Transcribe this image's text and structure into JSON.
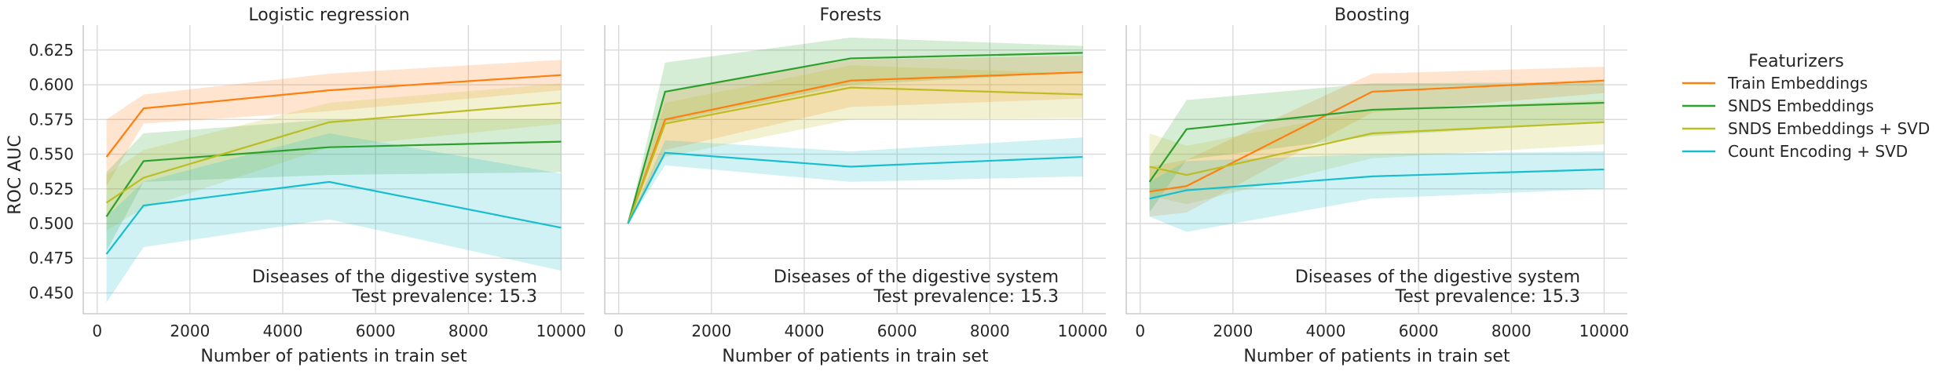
{
  "chart_data": {
    "type": "line",
    "ylabel": "ROC AUC",
    "xlabel": "Number of patients in train set",
    "x_ticks": [
      "0",
      "2000",
      "4000",
      "6000",
      "8000",
      "10000"
    ],
    "y_ticks": [
      "0.450",
      "0.475",
      "0.500",
      "0.525",
      "0.550",
      "0.575",
      "0.600",
      "0.625"
    ],
    "xlim": [
      -300,
      10500
    ],
    "ylim": [
      0.435,
      0.643
    ],
    "grid": true,
    "legend": {
      "title": "Featurizers",
      "placement": "right",
      "entries": [
        {
          "name": "Train Embeddings",
          "color": "#ff7f0e"
        },
        {
          "name": "SNDS Embeddings",
          "color": "#2ca02c"
        },
        {
          "name": "SNDS Embeddings + SVD",
          "color": "#bcbd22"
        },
        {
          "name": "Count Encoding + SVD",
          "color": "#17becf"
        }
      ]
    },
    "panels": [
      {
        "title": "Logistic regression",
        "annotation": [
          "Diseases of the digestive system",
          "Test prevalence: 15.3"
        ],
        "x": [
          200,
          1000,
          5000,
          10000
        ],
        "series": [
          {
            "name": "Train Embeddings",
            "values": [
              0.548,
              0.583,
              0.596,
              0.607
            ],
            "lower": [
              0.527,
              0.572,
              0.581,
              0.596
            ],
            "upper": [
              0.575,
              0.593,
              0.608,
              0.618
            ]
          },
          {
            "name": "SNDS Embeddings",
            "values": [
              0.505,
              0.545,
              0.555,
              0.559
            ],
            "lower": [
              0.48,
              0.53,
              0.535,
              0.537
            ],
            "upper": [
              0.537,
              0.565,
              0.575,
              0.575
            ]
          },
          {
            "name": "SNDS Embeddings + SVD",
            "values": [
              0.515,
              0.533,
              0.573,
              0.587
            ],
            "lower": [
              0.495,
              0.511,
              0.555,
              0.572
            ],
            "upper": [
              0.535,
              0.553,
              0.587,
              0.601
            ]
          },
          {
            "name": "Count Encoding + SVD",
            "values": [
              0.478,
              0.513,
              0.53,
              0.497
            ],
            "lower": [
              0.443,
              0.483,
              0.503,
              0.466
            ],
            "upper": [
              0.505,
              0.53,
              0.565,
              0.536
            ]
          }
        ]
      },
      {
        "title": "Forests",
        "annotation": [
          "Diseases of the digestive system",
          "Test prevalence: 15.3"
        ],
        "x": [
          200,
          1000,
          5000,
          10000
        ],
        "series": [
          {
            "name": "Train Embeddings",
            "values": [
              0.5,
              0.575,
              0.603,
              0.609
            ],
            "lower": [
              0.5,
              0.553,
              0.584,
              0.59
            ],
            "upper": [
              0.5,
              0.595,
              0.618,
              0.621
            ]
          },
          {
            "name": "SNDS Embeddings",
            "values": [
              0.5,
              0.595,
              0.619,
              0.623
            ],
            "lower": [
              0.5,
              0.573,
              0.6,
              0.609
            ],
            "upper": [
              0.5,
              0.616,
              0.634,
              0.628
            ]
          },
          {
            "name": "SNDS Embeddings + SVD",
            "values": [
              0.5,
              0.572,
              0.598,
              0.593
            ],
            "lower": [
              0.5,
              0.548,
              0.575,
              0.576
            ],
            "upper": [
              0.5,
              0.587,
              0.614,
              0.608
            ]
          },
          {
            "name": "Count Encoding + SVD",
            "values": [
              0.5,
              0.551,
              0.541,
              0.548
            ],
            "lower": [
              0.5,
              0.542,
              0.53,
              0.534
            ],
            "upper": [
              0.5,
              0.56,
              0.552,
              0.562
            ]
          }
        ]
      },
      {
        "title": "Boosting",
        "annotation": [
          "Diseases of the digestive system",
          "Test prevalence: 15.3"
        ],
        "x": [
          200,
          1000,
          5000,
          10000
        ],
        "series": [
          {
            "name": "Train Embeddings",
            "values": [
              0.523,
              0.527,
              0.595,
              0.603
            ],
            "lower": [
              0.505,
              0.508,
              0.58,
              0.594
            ],
            "upper": [
              0.541,
              0.546,
              0.608,
              0.613
            ]
          },
          {
            "name": "SNDS Embeddings",
            "values": [
              0.53,
              0.568,
              0.582,
              0.587
            ],
            "lower": [
              0.508,
              0.546,
              0.563,
              0.573
            ],
            "upper": [
              0.548,
              0.589,
              0.601,
              0.602
            ]
          },
          {
            "name": "SNDS Embeddings + SVD",
            "values": [
              0.541,
              0.535,
              0.565,
              0.573
            ],
            "lower": [
              0.52,
              0.514,
              0.547,
              0.557
            ],
            "upper": [
              0.565,
              0.556,
              0.582,
              0.589
            ]
          },
          {
            "name": "Count Encoding + SVD",
            "values": [
              0.518,
              0.524,
              0.534,
              0.539
            ],
            "lower": [
              0.505,
              0.494,
              0.518,
              0.525
            ],
            "upper": [
              0.53,
              0.545,
              0.55,
              0.552
            ]
          }
        ]
      }
    ]
  }
}
